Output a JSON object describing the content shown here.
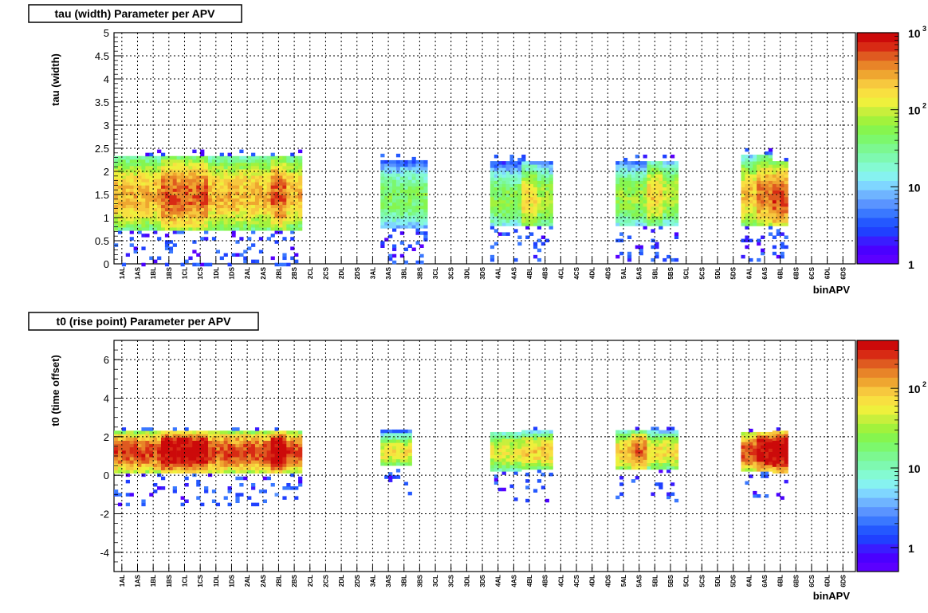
{
  "colors": {
    "frame": "#000000",
    "grid": "#000000",
    "background": "#ffffff",
    "palette": [
      "#5b00ff",
      "#4a00ff",
      "#3a1cff",
      "#2040ff",
      "#2458ff",
      "#3a78ff",
      "#5a94ff",
      "#6fb4ff",
      "#7fd6ff",
      "#86f2f0",
      "#84fad2",
      "#7ef9b0",
      "#7cf890",
      "#7cf86c",
      "#86f54e",
      "#a2f23c",
      "#c8ef3c",
      "#eef03c",
      "#f8e040",
      "#f7c83e",
      "#efa630",
      "#e88428",
      "#df5a20",
      "#d82a14",
      "#cc0a0a"
    ]
  },
  "bin_labels": [
    "1AL",
    "1AS",
    "1BL",
    "1BS",
    "1CL",
    "1CS",
    "1DL",
    "1DS",
    "2AL",
    "2AS",
    "2BL",
    "2BS",
    "2CL",
    "2CS",
    "2DL",
    "2DS",
    "3AL",
    "3AS",
    "3BL",
    "3BS",
    "3CL",
    "3CS",
    "3DL",
    "3DS",
    "4AL",
    "4AS",
    "4BL",
    "4BS",
    "4CL",
    "4CS",
    "4DL",
    "4DS",
    "5AL",
    "5AS",
    "5BL",
    "5BS",
    "5CL",
    "5CS",
    "5DL",
    "5DS",
    "6AL",
    "6AS",
    "6BL",
    "6BS",
    "6CS",
    "6DL",
    "6DS"
  ],
  "chart_data": [
    {
      "type": "heatmap",
      "title": "tau (width) Parameter per APV",
      "xlabel": "binAPV",
      "ylabel": "tau (width)",
      "ylim": [
        0,
        5
      ],
      "y_ticks": [
        "0",
        "0.5",
        "1",
        "1.5",
        "2",
        "2.5",
        "3",
        "3.5",
        "4",
        "4.5",
        "5"
      ],
      "x_categories_ref": "bin_labels",
      "grid": true,
      "colorbar": {
        "scale": "log",
        "min": 1,
        "max": 1000,
        "tick_labels": [
          "1",
          "10",
          "10",
          "10"
        ],
        "tick_superscripts": [
          "",
          "",
          "2",
          "3"
        ]
      },
      "clusters": [
        {
          "bins": [
            0,
            11
          ],
          "core": 1.45,
          "halo": [
            0.7,
            2.3
          ],
          "peak_z": 320,
          "hot_bins": [
            3,
            4,
            5,
            10
          ]
        },
        {
          "bins": [
            17,
            19
          ],
          "core": 1.4,
          "halo": [
            0.75,
            2.2
          ],
          "peak_z": 60,
          "hot_bins": []
        },
        {
          "bins": [
            24,
            25
          ],
          "core": 1.35,
          "halo": [
            0.8,
            2.2
          ],
          "peak_z": 70,
          "hot_bins": []
        },
        {
          "bins": [
            26,
            27
          ],
          "core": 1.35,
          "halo": [
            0.8,
            2.2
          ],
          "peak_z": 110,
          "hot_bins": [
            26
          ]
        },
        {
          "bins": [
            32,
            33
          ],
          "core": 1.4,
          "halo": [
            0.8,
            2.2
          ],
          "peak_z": 90,
          "hot_bins": []
        },
        {
          "bins": [
            34,
            35
          ],
          "core": 1.45,
          "halo": [
            0.8,
            2.2
          ],
          "peak_z": 120,
          "hot_bins": [
            34
          ]
        },
        {
          "bins": [
            40,
            41
          ],
          "core": 1.45,
          "halo": [
            0.8,
            2.3
          ],
          "peak_z": 260,
          "hot_bins": [
            41
          ]
        },
        {
          "bins": [
            42,
            42
          ],
          "core": 1.4,
          "halo": [
            0.8,
            2.2
          ],
          "peak_z": 380,
          "hot_bins": [
            42
          ]
        }
      ]
    },
    {
      "type": "heatmap",
      "title": "t0 (rise point) Parameter per APV",
      "xlabel": "binAPV",
      "ylabel": "t0 (time offset)",
      "ylim": [
        -5,
        7
      ],
      "y_ticks": [
        "-4",
        "-2",
        "0",
        "2",
        "4",
        "6"
      ],
      "x_categories_ref": "bin_labels",
      "grid": true,
      "colorbar": {
        "scale": "log",
        "min": 0.5,
        "max": 400,
        "tick_labels": [
          "1",
          "10",
          "10"
        ],
        "tick_superscripts": [
          "",
          "",
          "2"
        ]
      },
      "clusters": [
        {
          "bins": [
            0,
            11
          ],
          "core": 1.1,
          "halo": [
            0.0,
            2.2
          ],
          "peak_z": 300,
          "hot_bins": [
            3,
            4,
            5,
            10
          ]
        },
        {
          "bins": [
            17,
            18
          ],
          "core": 1.1,
          "halo": [
            0.4,
            2.2
          ],
          "peak_z": 80,
          "hot_bins": []
        },
        {
          "bins": [
            24,
            25
          ],
          "core": 1.1,
          "halo": [
            0.1,
            2.2
          ],
          "peak_z": 70,
          "hot_bins": []
        },
        {
          "bins": [
            26,
            27
          ],
          "core": 1.1,
          "halo": [
            0.2,
            2.2
          ],
          "peak_z": 110,
          "hot_bins": []
        },
        {
          "bins": [
            32,
            33
          ],
          "core": 1.1,
          "halo": [
            0.2,
            2.2
          ],
          "peak_z": 120,
          "hot_bins": [
            33
          ]
        },
        {
          "bins": [
            34,
            35
          ],
          "core": 1.1,
          "halo": [
            0.2,
            2.2
          ],
          "peak_z": 90,
          "hot_bins": []
        },
        {
          "bins": [
            40,
            41
          ],
          "core": 1.1,
          "halo": [
            0.1,
            2.2
          ],
          "peak_z": 280,
          "hot_bins": [
            41
          ]
        },
        {
          "bins": [
            42,
            42
          ],
          "core": 1.1,
          "halo": [
            0.0,
            2.2
          ],
          "peak_z": 320,
          "hot_bins": [
            42
          ]
        }
      ]
    }
  ]
}
